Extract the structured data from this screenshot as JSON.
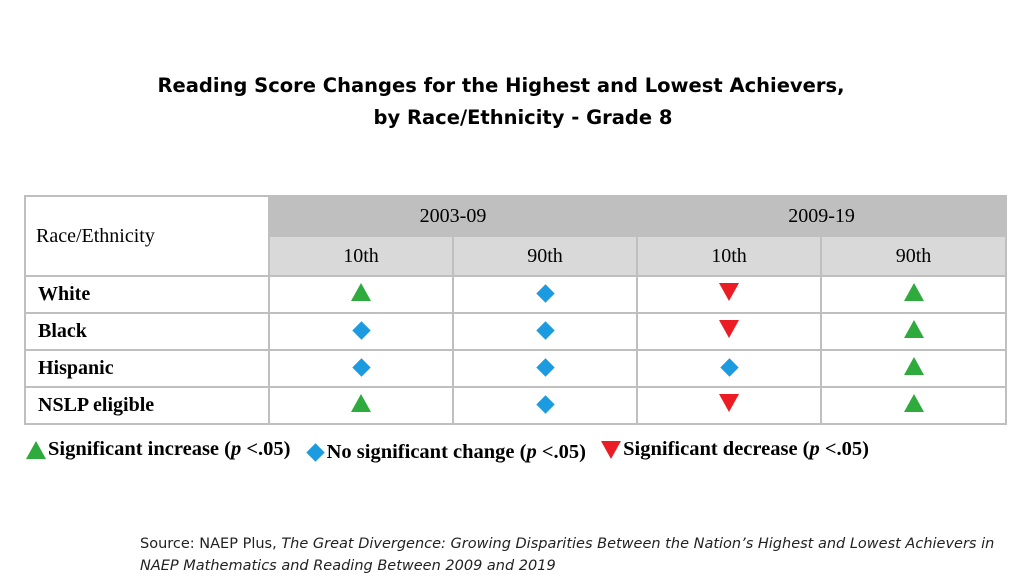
{
  "title": {
    "line1": "Reading Score Changes for the Highest and Lowest Achievers,",
    "line2": "by Race/Ethnicity - Grade 8"
  },
  "table": {
    "row_header": "Race/Ethnicity",
    "periods": [
      "2003-09",
      "2009-19"
    ],
    "percentiles": [
      "10th",
      "90th",
      "10th",
      "90th"
    ],
    "rows": [
      {
        "label": "White",
        "marks": [
          "increase",
          "no-change",
          "decrease",
          "increase"
        ]
      },
      {
        "label": "Black",
        "marks": [
          "no-change",
          "no-change",
          "decrease",
          "increase"
        ]
      },
      {
        "label": "Hispanic",
        "marks": [
          "no-change",
          "no-change",
          "no-change",
          "increase"
        ]
      },
      {
        "label": "NSLP eligible",
        "marks": [
          "increase",
          "no-change",
          "decrease",
          "increase"
        ]
      }
    ]
  },
  "legend": {
    "increase": {
      "text": "Significant increase (",
      "p": "p",
      "tail": " <.05)",
      "color": "#2eab3c"
    },
    "no_change": {
      "text": "No significant change (",
      "p": "p",
      "tail": " <.05)",
      "color": "#1c9be0"
    },
    "decrease": {
      "text": "Significant decrease (",
      "p": "p",
      "tail": " <.05)",
      "color": "#ec1c24"
    }
  },
  "source": {
    "prefix": "Source: NAEP Plus, ",
    "italic": "The Great Divergence: Growing Disparities Between the Nation’s Highest and Lowest Achievers in NAEP Mathematics and Reading Between 2009 and 2019"
  }
}
